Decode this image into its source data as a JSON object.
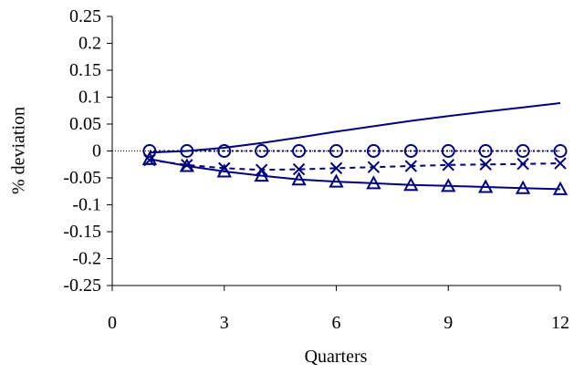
{
  "chart_data": {
    "type": "line",
    "xlabel": "Quarters",
    "ylabel": "% deviation",
    "xlim": [
      0,
      12
    ],
    "ylim": [
      -0.25,
      0.25
    ],
    "x_ticks": [
      0,
      3,
      6,
      9,
      12
    ],
    "x_tick_labels": [
      "0",
      "3",
      "6",
      "9",
      "12"
    ],
    "y_ticks": [
      0.25,
      0.2,
      0.15,
      0.1,
      0.05,
      0,
      -0.05,
      -0.1,
      -0.15,
      -0.2,
      -0.25
    ],
    "y_tick_labels": [
      "0.25",
      "0.2",
      "0.15",
      "0.1",
      "0.05",
      "0",
      "-0.05",
      "-0.1",
      "-0.15",
      "-0.2",
      "-0.25"
    ],
    "grid": false,
    "legend": "none",
    "color": "#000080",
    "x": [
      1,
      2,
      3,
      4,
      5,
      6,
      7,
      8,
      9,
      10,
      11,
      12
    ],
    "series": [
      {
        "style": "solid",
        "marker": "none",
        "values": [
          -0.003,
          0.0,
          0.006,
          0.015,
          0.025,
          0.036,
          0.046,
          0.056,
          0.065,
          0.073,
          0.081,
          0.089
        ]
      },
      {
        "style": "dotted",
        "marker": "circle",
        "values": [
          0.0,
          0.0,
          0.0,
          0.0,
          0.0,
          0.0,
          0.0,
          0.0,
          0.0,
          0.0,
          0.0,
          0.0
        ]
      },
      {
        "style": "dashed",
        "marker": "x",
        "values": [
          -0.017,
          -0.026,
          -0.032,
          -0.035,
          -0.034,
          -0.032,
          -0.03,
          -0.028,
          -0.026,
          -0.025,
          -0.024,
          -0.023
        ]
      },
      {
        "style": "solid",
        "marker": "triangle",
        "values": [
          -0.015,
          -0.028,
          -0.038,
          -0.046,
          -0.053,
          -0.057,
          -0.06,
          -0.063,
          -0.065,
          -0.067,
          -0.069,
          -0.071
        ]
      }
    ]
  }
}
